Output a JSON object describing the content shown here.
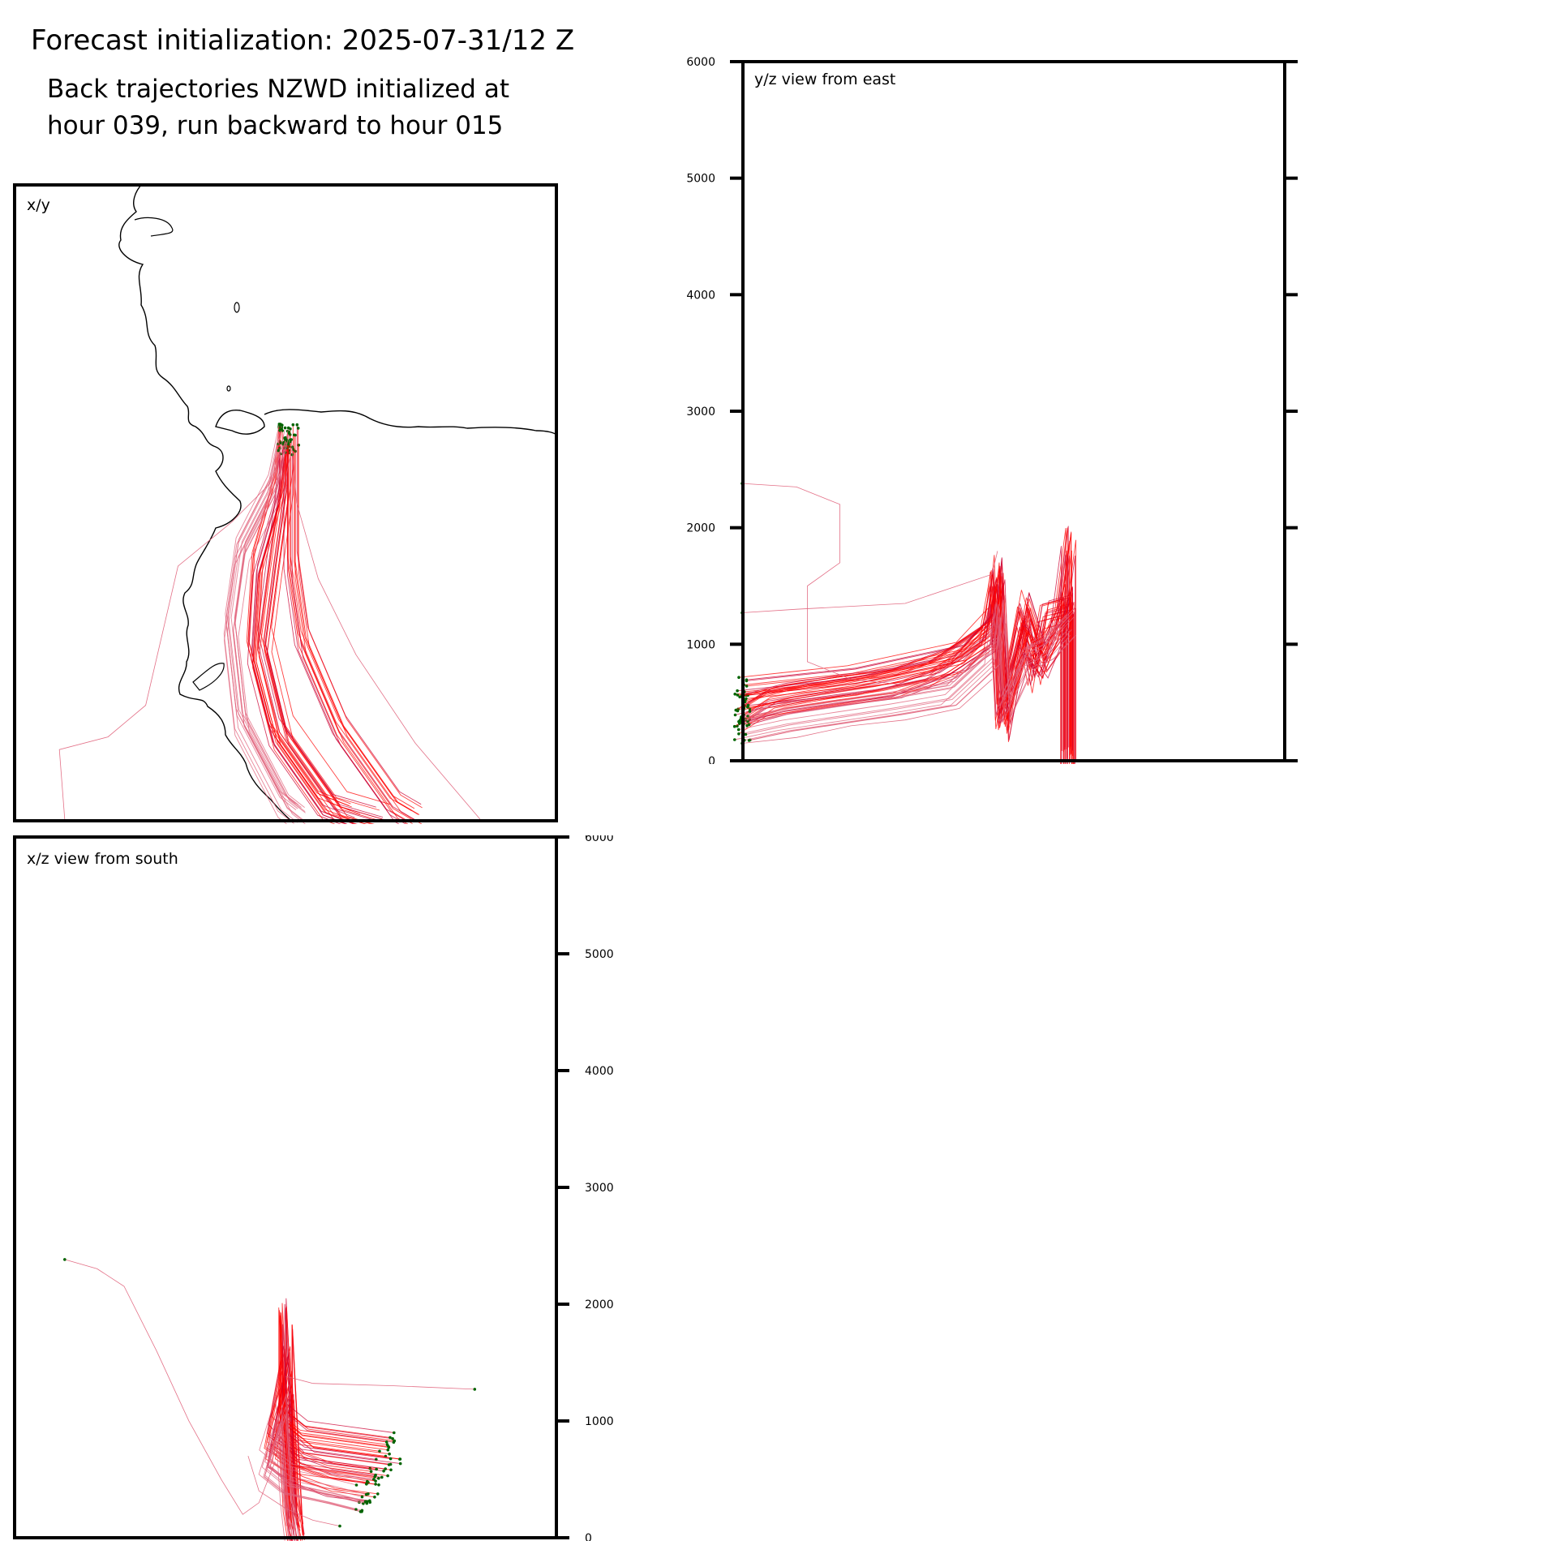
{
  "header": {
    "title": "Forecast initialization: 2025-07-31/12 Z",
    "subtitle_line1": "Back trajectories NZWD initialized at",
    "subtitle_line2": "hour 039, run backward to hour 015"
  },
  "colors": {
    "trajectory": "#ff0000",
    "trajectory_dense": "#cc0033",
    "trajectory_faint": "#e0607a",
    "start_marker": "#006400",
    "coastline": "#000000"
  },
  "chart_data": [
    {
      "type": "line",
      "panel": "x/y",
      "title": "x/y",
      "xlabel": "",
      "ylabel": "",
      "grid": false,
      "legend": "none",
      "description_of_series": "trajectories from NZWD spreading southward; coastline overlay",
      "series": [
        {
          "values": [
            [
              0.5,
              0.6
            ],
            [
              0.5,
              0.53
            ],
            [
              0.48,
              0.41
            ],
            [
              0.46,
              0.28
            ],
            [
              0.5,
              0.14
            ],
            [
              0.6,
              0.02
            ],
            [
              0.68,
              0.0
            ]
          ]
        },
        {
          "values": [
            [
              0.5,
              0.6
            ],
            [
              0.49,
              0.52
            ],
            [
              0.45,
              0.4
            ],
            [
              0.44,
              0.26
            ],
            [
              0.48,
              0.13
            ],
            [
              0.57,
              0.02
            ],
            [
              0.63,
              0.0
            ]
          ]
        },
        {
          "values": [
            [
              0.51,
              0.6
            ],
            [
              0.51,
              0.52
            ],
            [
              0.51,
              0.4
            ],
            [
              0.53,
              0.28
            ],
            [
              0.6,
              0.14
            ],
            [
              0.7,
              0.02
            ],
            [
              0.74,
              0.0
            ]
          ]
        },
        {
          "values": [
            [
              0.5,
              0.6
            ],
            [
              0.48,
              0.52
            ],
            [
              0.42,
              0.42
            ],
            [
              0.4,
              0.3
            ],
            [
              0.42,
              0.15
            ],
            [
              0.5,
              0.02
            ],
            [
              0.53,
              0.0
            ]
          ]
        },
        {
          "values": [
            [
              0.51,
              0.6
            ],
            [
              0.52,
              0.5
            ],
            [
              0.56,
              0.38
            ],
            [
              0.63,
              0.26
            ],
            [
              0.74,
              0.12
            ],
            [
              0.86,
              0.0
            ]
          ]
        },
        {
          "values": [
            [
              0.5,
              0.6
            ],
            [
              0.47,
              0.53
            ],
            [
              0.4,
              0.47
            ],
            [
              0.3,
              0.4
            ],
            [
              0.24,
              0.18
            ],
            [
              0.17,
              0.13
            ],
            [
              0.08,
              0.11
            ],
            [
              0.09,
              0.0
            ]
          ]
        }
      ]
    },
    {
      "type": "line",
      "panel": "y/z view from east",
      "title": "y/z view from east",
      "xlabel": "",
      "ylabel": "",
      "ylim": [
        0,
        6000
      ],
      "yticks": [
        "0",
        "1000",
        "2000",
        "3000",
        "4000",
        "5000",
        "6000"
      ],
      "grid": false,
      "legend": "none",
      "series": [
        {
          "values": [
            [
              0.0,
              350
            ],
            [
              0.05,
              500
            ],
            [
              0.15,
              580
            ],
            [
              0.25,
              650
            ],
            [
              0.35,
              750
            ],
            [
              0.45,
              1050
            ],
            [
              0.47,
              1550
            ],
            [
              0.48,
              400
            ],
            [
              0.52,
              1200
            ],
            [
              0.54,
              700
            ],
            [
              0.56,
              1250
            ],
            [
              0.6,
              1300
            ],
            [
              0.6,
              0
            ]
          ]
        },
        {
          "values": [
            [
              0.0,
              600
            ],
            [
              0.1,
              650
            ],
            [
              0.2,
              700
            ],
            [
              0.3,
              800
            ],
            [
              0.4,
              900
            ],
            [
              0.46,
              1200
            ],
            [
              0.47,
              1650
            ],
            [
              0.48,
              300
            ],
            [
              0.52,
              1350
            ],
            [
              0.55,
              900
            ],
            [
              0.58,
              1100
            ],
            [
              0.6,
              1400
            ],
            [
              0.6,
              0
            ]
          ]
        },
        {
          "values": [
            [
              0.0,
              450
            ],
            [
              0.08,
              550
            ],
            [
              0.18,
              620
            ],
            [
              0.28,
              680
            ],
            [
              0.38,
              850
            ],
            [
              0.46,
              1100
            ],
            [
              0.47,
              1400
            ],
            [
              0.48,
              450
            ],
            [
              0.52,
              1050
            ],
            [
              0.55,
              850
            ],
            [
              0.58,
              1200
            ],
            [
              0.6,
              1900
            ],
            [
              0.6,
              0
            ]
          ]
        },
        {
          "values": [
            [
              0.0,
              300
            ],
            [
              0.08,
              380
            ],
            [
              0.18,
              450
            ],
            [
              0.28,
              520
            ],
            [
              0.38,
              600
            ],
            [
              0.46,
              950
            ],
            [
              0.47,
              1300
            ],
            [
              0.48,
              500
            ],
            [
              0.52,
              900
            ],
            [
              0.56,
              1000
            ],
            [
              0.6,
              1200
            ]
          ]
        },
        {
          "values": [
            [
              0.0,
              1270
            ],
            [
              0.1,
              1300
            ],
            [
              0.3,
              1350
            ],
            [
              0.46,
              1600
            ],
            [
              0.47,
              1800
            ]
          ]
        },
        {
          "values": [
            [
              0.0,
              2380
            ],
            [
              0.1,
              2350
            ],
            [
              0.18,
              2200
            ],
            [
              0.18,
              1700
            ],
            [
              0.12,
              1500
            ],
            [
              0.12,
              850
            ],
            [
              0.2,
              700
            ],
            [
              0.3,
              650
            ]
          ]
        },
        {
          "values": [
            [
              0.0,
              150
            ],
            [
              0.1,
              200
            ],
            [
              0.2,
              300
            ],
            [
              0.3,
              350
            ],
            [
              0.4,
              450
            ],
            [
              0.46,
              700
            ]
          ]
        }
      ]
    },
    {
      "type": "line",
      "panel": "x/z view from south",
      "title": "x/z view from south",
      "xlabel": "",
      "ylabel": "",
      "ylim": [
        0,
        6000
      ],
      "yticks": [
        "0",
        "1000",
        "2000",
        "3000",
        "4000",
        "5000",
        "6000"
      ],
      "grid": false,
      "legend": "none",
      "series": [
        {
          "values": [
            [
              0.68,
              600
            ],
            [
              0.6,
              650
            ],
            [
              0.52,
              700
            ],
            [
              0.48,
              900
            ],
            [
              0.5,
              1200
            ],
            [
              0.51,
              300
            ],
            [
              0.52,
              0
            ]
          ]
        },
        {
          "values": [
            [
              0.66,
              450
            ],
            [
              0.58,
              500
            ],
            [
              0.52,
              600
            ],
            [
              0.47,
              750
            ],
            [
              0.5,
              1500
            ],
            [
              0.51,
              200
            ],
            [
              0.52,
              50
            ]
          ]
        },
        {
          "values": [
            [
              0.7,
              750
            ],
            [
              0.62,
              800
            ],
            [
              0.54,
              850
            ],
            [
              0.5,
              1000
            ],
            [
              0.5,
              1900
            ],
            [
              0.52,
              100
            ]
          ]
        },
        {
          "values": [
            [
              0.64,
              350
            ],
            [
              0.58,
              420
            ],
            [
              0.5,
              500
            ],
            [
              0.46,
              650
            ],
            [
              0.49,
              1100
            ],
            [
              0.5,
              400
            ],
            [
              0.51,
              0
            ]
          ]
        },
        {
          "values": [
            [
              0.85,
              1270
            ],
            [
              0.7,
              1300
            ],
            [
              0.55,
              1320
            ],
            [
              0.5,
              1380
            ]
          ]
        },
        {
          "values": [
            [
              0.09,
              2380
            ],
            [
              0.15,
              2300
            ],
            [
              0.2,
              2150
            ],
            [
              0.26,
              1600
            ],
            [
              0.32,
              1000
            ],
            [
              0.38,
              500
            ],
            [
              0.42,
              200
            ],
            [
              0.45,
              300
            ],
            [
              0.48,
              650
            ]
          ]
        },
        {
          "values": [
            [
              0.6,
              100
            ],
            [
              0.55,
              150
            ],
            [
              0.5,
              250
            ],
            [
              0.45,
              400
            ],
            [
              0.43,
              700
            ]
          ]
        }
      ]
    }
  ]
}
